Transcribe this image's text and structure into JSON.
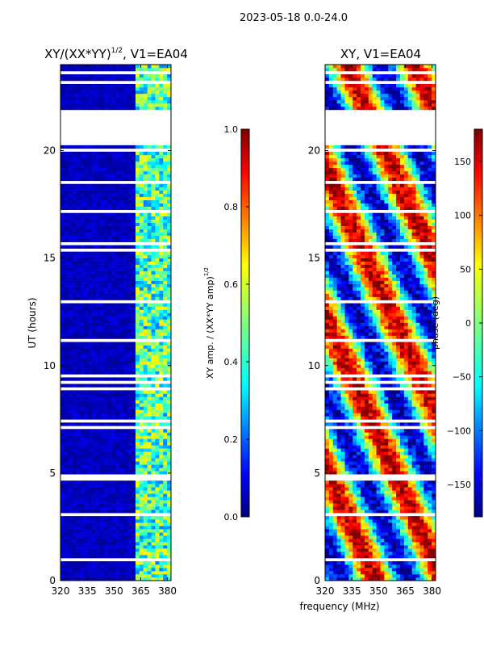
{
  "figure": {
    "suptitle": "2023-05-18 0.0-24.0",
    "xlabel_shared": "frequency (MHz)"
  },
  "colors": {
    "jet": [
      "#00007f",
      "#0000ff",
      "#007fff",
      "#00ffff",
      "#7fff7f",
      "#ffff00",
      "#ff7f00",
      "#ff0000",
      "#7f0000"
    ],
    "axes": "#000000",
    "gap": "#ffffff"
  },
  "chart_data": [
    {
      "type": "heatmap",
      "title": "XY/(XX*YY)",
      "title_exponent": "1/2",
      "title_suffix": ", V1=EA04",
      "xlabel": "",
      "ylabel": "UT (hours)",
      "xlim": [
        320,
        382
      ],
      "ylim": [
        0,
        24
      ],
      "xticks": [
        "320",
        "335",
        "350",
        "365",
        "380"
      ],
      "yticks": [
        "0",
        "5",
        "10",
        "15",
        "20"
      ],
      "xtick_values": [
        320,
        335,
        350,
        365,
        380
      ],
      "ytick_values": [
        0,
        5,
        10,
        15,
        20
      ],
      "colorbar": {
        "label": "XY amp. / (XX*YY amp)",
        "label_exponent": "1/2",
        "range": [
          0.0,
          1.0
        ],
        "ticks": [
          "0.0",
          "0.2",
          "0.4",
          "0.6",
          "0.8",
          "1.0"
        ],
        "tick_values": [
          0.0,
          0.2,
          0.4,
          0.6,
          0.8,
          1.0
        ]
      },
      "no_data_hours": [
        [
          20.3,
          21.9
        ]
      ],
      "high_amplitude_band_mhz": [
        362,
        382
      ]
    },
    {
      "type": "heatmap",
      "title": "XY, V1=EA04",
      "xlabel": "frequency (MHz)",
      "ylabel": "",
      "xlim": [
        320,
        382
      ],
      "ylim": [
        0,
        24
      ],
      "xticks": [
        "320",
        "335",
        "350",
        "365",
        "380"
      ],
      "yticks": [
        "0",
        "5",
        "10",
        "15",
        "20"
      ],
      "xtick_values": [
        320,
        335,
        350,
        365,
        380
      ],
      "ytick_values": [
        0,
        5,
        10,
        15,
        20
      ],
      "colorbar": {
        "label": "phase (deg)",
        "range": [
          -180,
          180
        ],
        "ticks": [
          "150",
          "100",
          "50",
          "0",
          "−50",
          "−100",
          "−150"
        ],
        "tick_values": [
          150,
          100,
          50,
          0,
          -50,
          -100,
          -150
        ]
      },
      "no_data_hours": [
        [
          20.3,
          21.9
        ]
      ]
    }
  ]
}
